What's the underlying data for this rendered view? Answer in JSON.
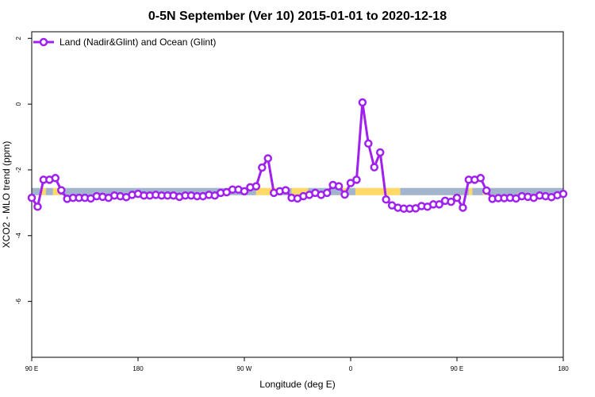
{
  "chart_data": {
    "type": "line",
    "title": "0-5N September (Ver 10)   2015-01-01 to 2020-12-18",
    "xlabel": "Longitude (deg E)",
    "ylabel": "XCO2 - MLO trend (ppm)",
    "xlim": [
      90,
      540
    ],
    "ylim": [
      -7.7,
      2.2
    ],
    "x_ticks": [
      {
        "value": 90,
        "label": "90 E"
      },
      {
        "value": 180,
        "label": "180"
      },
      {
        "value": 270,
        "label": "90 W"
      },
      {
        "value": 360,
        "label": "0"
      },
      {
        "value": 450,
        "label": "90 E"
      },
      {
        "value": 540,
        "label": "180"
      }
    ],
    "y_ticks": [
      {
        "value": 2,
        "label": "2"
      },
      {
        "value": 0,
        "label": "0"
      },
      {
        "value": -2,
        "label": "-2"
      },
      {
        "value": -4,
        "label": "-4"
      },
      {
        "value": -6,
        "label": "-6"
      }
    ],
    "legend": {
      "position": "top-left",
      "entries": [
        "Land (Nadir&Glint) and Ocean (Glint)"
      ]
    },
    "series": [
      {
        "name": "Land (Nadir&Glint) and Ocean (Glint)",
        "color": "#a020f0",
        "x": [
          90,
          95,
          100,
          105,
          110,
          115,
          120,
          125,
          130,
          135,
          140,
          145,
          150,
          155,
          160,
          165,
          170,
          175,
          180,
          185,
          190,
          195,
          200,
          205,
          210,
          215,
          220,
          225,
          230,
          235,
          240,
          245,
          250,
          255,
          260,
          265,
          270,
          275,
          280,
          285,
          290,
          295,
          300,
          305,
          310,
          315,
          320,
          325,
          330,
          335,
          340,
          345,
          350,
          355,
          360,
          365,
          370,
          375,
          380,
          385,
          390,
          395,
          400,
          405,
          410,
          415,
          420,
          425,
          430,
          435,
          440,
          445,
          450,
          455,
          460,
          465,
          470,
          475,
          480,
          485,
          490,
          495,
          500,
          505,
          510,
          515,
          520,
          525,
          530,
          535,
          540
        ],
        "values": [
          -2.85,
          -3.12,
          -2.3,
          -2.3,
          -2.25,
          -2.62,
          -2.88,
          -2.85,
          -2.85,
          -2.85,
          -2.87,
          -2.8,
          -2.82,
          -2.85,
          -2.78,
          -2.8,
          -2.83,
          -2.76,
          -2.73,
          -2.78,
          -2.78,
          -2.76,
          -2.78,
          -2.78,
          -2.78,
          -2.82,
          -2.78,
          -2.78,
          -2.8,
          -2.8,
          -2.76,
          -2.78,
          -2.7,
          -2.68,
          -2.6,
          -2.6,
          -2.65,
          -2.53,
          -2.5,
          -1.93,
          -1.65,
          -2.7,
          -2.65,
          -2.62,
          -2.85,
          -2.87,
          -2.8,
          -2.76,
          -2.7,
          -2.76,
          -2.7,
          -2.46,
          -2.5,
          -2.75,
          -2.4,
          -2.3,
          0.05,
          -1.2,
          -1.92,
          -1.47,
          -2.9,
          -3.08,
          -3.15,
          -3.18,
          -3.18,
          -3.17,
          -3.1,
          -3.12,
          -3.05,
          -3.05,
          -2.94,
          -2.97,
          -2.85,
          -3.15,
          -2.3,
          -2.3,
          -2.25,
          -2.63,
          -2.88,
          -2.86,
          -2.86,
          -2.85,
          -2.87,
          -2.8,
          -2.82,
          -2.85,
          -2.78,
          -2.8,
          -2.83,
          -2.77,
          -2.73
        ]
      }
    ],
    "background_band": {
      "y_range": [
        -2.77,
        -2.55
      ],
      "segments": [
        {
          "from": 90,
          "to": 97,
          "color": "#a2b5cd"
        },
        {
          "from": 97,
          "to": 102,
          "color": "#ffd966"
        },
        {
          "from": 102,
          "to": 108,
          "color": "#a2b5cd"
        },
        {
          "from": 108,
          "to": 114,
          "color": "#ffd966"
        },
        {
          "from": 114,
          "to": 280,
          "color": "#a2b5cd"
        },
        {
          "from": 280,
          "to": 300,
          "color": "#ffd966"
        },
        {
          "from": 300,
          "to": 310,
          "color": "#a2b5cd"
        },
        {
          "from": 310,
          "to": 324,
          "color": "#ffd966"
        },
        {
          "from": 324,
          "to": 352,
          "color": "#a2b5cd"
        },
        {
          "from": 352,
          "to": 357,
          "color": "#ffd966"
        },
        {
          "from": 357,
          "to": 364,
          "color": "#a2b5cd"
        },
        {
          "from": 364,
          "to": 402,
          "color": "#ffd966"
        },
        {
          "from": 402,
          "to": 460,
          "color": "#a2b5cd"
        },
        {
          "from": 460,
          "to": 463,
          "color": "#ffd966"
        },
        {
          "from": 463,
          "to": 472,
          "color": "#a2b5cd"
        },
        {
          "from": 472,
          "to": 476,
          "color": "#ffd966"
        },
        {
          "from": 476,
          "to": 540,
          "color": "#a2b5cd"
        }
      ]
    }
  }
}
